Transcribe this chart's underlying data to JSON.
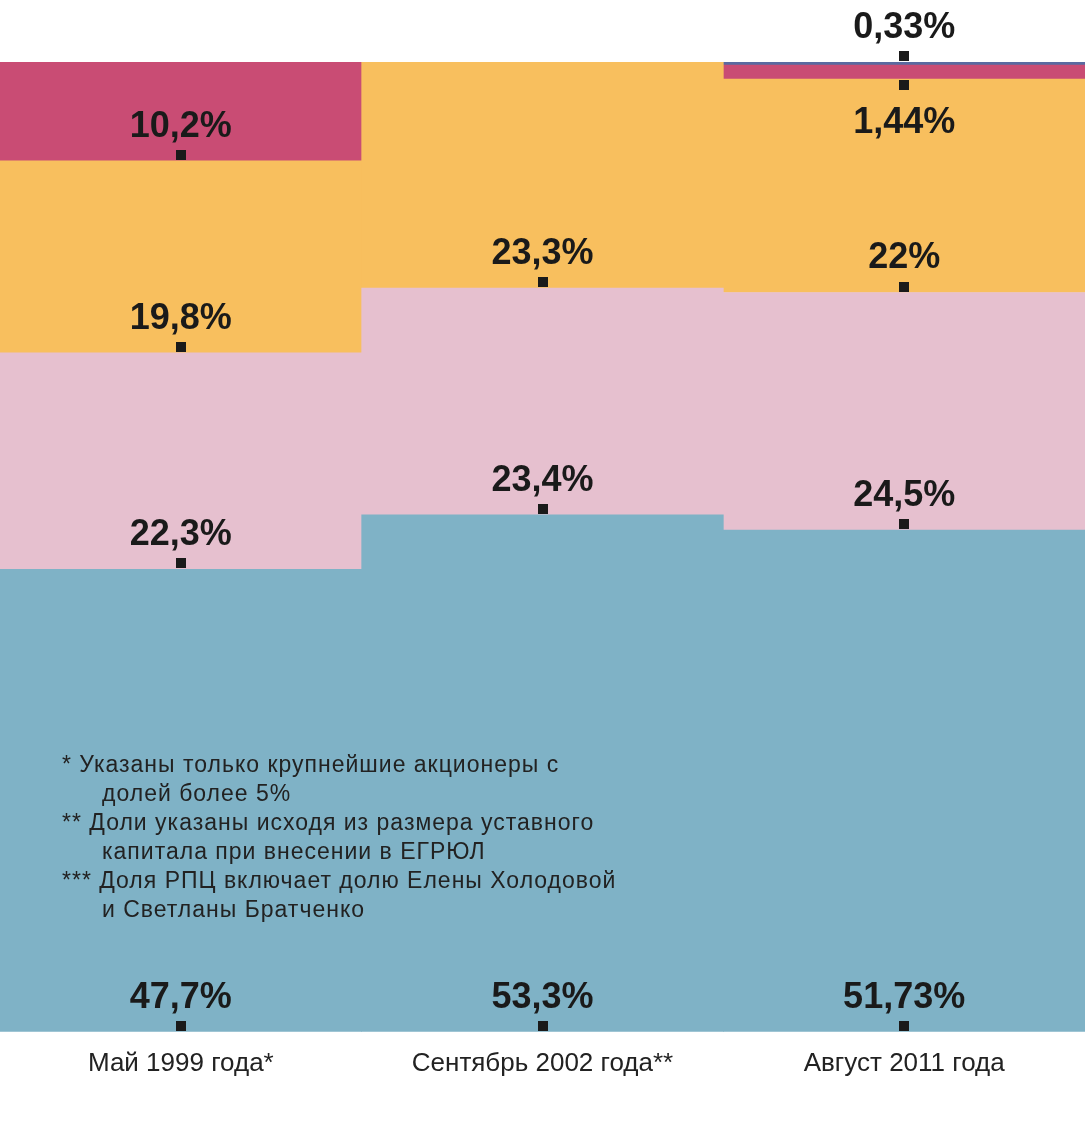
{
  "chart_data": {
    "type": "bar",
    "stacked": true,
    "categories": [
      "Май 1999 года*",
      "Сентябрь 2002 года**",
      "Август 2011 года"
    ],
    "ylim": [
      0,
      100
    ],
    "tick_labels": "x",
    "legend": false,
    "series": [
      {
        "color": "#7fb2c6",
        "values": [
          47.7,
          53.3,
          51.73
        ],
        "value_labels": [
          "47,7%",
          "53,3%",
          "51,73%"
        ]
      },
      {
        "color": "#e6c0cf",
        "values": [
          22.3,
          23.4,
          24.5
        ],
        "value_labels": [
          "22,3%",
          "23,4%",
          "24,5%"
        ]
      },
      {
        "color": "#f8bf5e",
        "values": [
          19.8,
          23.3,
          22
        ],
        "value_labels": [
          "19,8%",
          "23,3%",
          "22%"
        ]
      },
      {
        "color": "#c94c74",
        "values": [
          10.2,
          null,
          1.44
        ],
        "value_labels": [
          "10,2%",
          null,
          "1,44%"
        ]
      },
      {
        "color": "#5a6aa0",
        "values": [
          null,
          null,
          0.33
        ],
        "value_labels": [
          null,
          null,
          "0,33%"
        ]
      }
    ],
    "annotations": [
      "* Указаны только крупнейшие акционеры с долей более 5%",
      "** Доли указаны исходя из размера уставного капитала при внесении в ЕГРЮЛ",
      "*** Доля РПЦ включает долю Елены Холодовой и Светланы Братченко"
    ]
  }
}
